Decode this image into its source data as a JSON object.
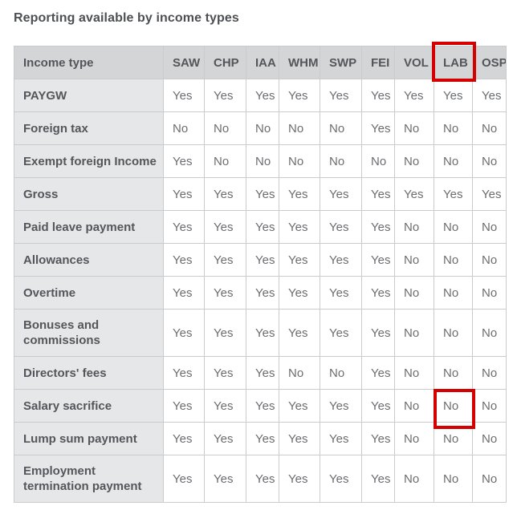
{
  "page": {
    "title": "Reporting available by income types"
  },
  "table": {
    "columns": [
      "Income type",
      "SAW",
      "CHP",
      "IAA",
      "WHM",
      "SWP",
      "FEI",
      "VOL",
      "LAB",
      "OSP"
    ],
    "rows": [
      {
        "label": "PAYGW",
        "values": [
          "Yes",
          "Yes",
          "Yes",
          "Yes",
          "Yes",
          "Yes",
          "Yes",
          "Yes",
          "Yes"
        ]
      },
      {
        "label": "Foreign tax",
        "values": [
          "No",
          "No",
          "No",
          "No",
          "No",
          "Yes",
          "No",
          "No",
          "No"
        ]
      },
      {
        "label": "Exempt foreign Income",
        "values": [
          "Yes",
          "No",
          "No",
          "No",
          "No",
          "No",
          "No",
          "No",
          "No"
        ]
      },
      {
        "label": "Gross",
        "values": [
          "Yes",
          "Yes",
          "Yes",
          "Yes",
          "Yes",
          "Yes",
          "Yes",
          "Yes",
          "Yes"
        ]
      },
      {
        "label": "Paid leave payment",
        "values": [
          "Yes",
          "Yes",
          "Yes",
          "Yes",
          "Yes",
          "Yes",
          "No",
          "No",
          "No"
        ]
      },
      {
        "label": "Allowances",
        "values": [
          "Yes",
          "Yes",
          "Yes",
          "Yes",
          "Yes",
          "Yes",
          "No",
          "No",
          "No"
        ]
      },
      {
        "label": "Overtime",
        "values": [
          "Yes",
          "Yes",
          "Yes",
          "Yes",
          "Yes",
          "Yes",
          "No",
          "No",
          "No"
        ]
      },
      {
        "label": "Bonuses and commissions",
        "values": [
          "Yes",
          "Yes",
          "Yes",
          "Yes",
          "Yes",
          "Yes",
          "No",
          "No",
          "No"
        ]
      },
      {
        "label": "Directors' fees",
        "values": [
          "Yes",
          "Yes",
          "Yes",
          "No",
          "No",
          "Yes",
          "No",
          "No",
          "No"
        ]
      },
      {
        "label": "Salary sacrifice",
        "values": [
          "Yes",
          "Yes",
          "Yes",
          "Yes",
          "Yes",
          "Yes",
          "No",
          "No",
          "No"
        ]
      },
      {
        "label": "Lump sum payment",
        "values": [
          "Yes",
          "Yes",
          "Yes",
          "Yes",
          "Yes",
          "Yes",
          "No",
          "No",
          "No"
        ]
      },
      {
        "label": "Employment termination payment",
        "values": [
          "Yes",
          "Yes",
          "Yes",
          "Yes",
          "Yes",
          "Yes",
          "No",
          "No",
          "No"
        ]
      }
    ],
    "highlights": {
      "color": "#d50000",
      "header_box": {
        "column": "LAB"
      },
      "cell_box": {
        "row": "Salary sacrifice",
        "column": "LAB",
        "value": "No"
      }
    }
  }
}
